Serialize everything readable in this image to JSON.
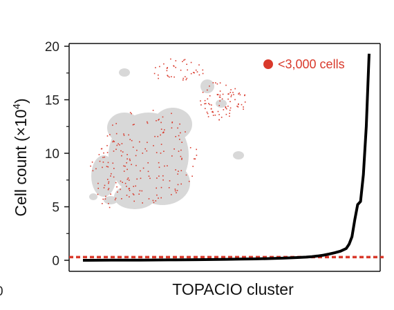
{
  "chart_data": {
    "type": "line",
    "title": "",
    "xlabel": "TOPACIO cluster",
    "ylabel": "Cell count (×10⁴)",
    "ylabel_base": "Cell count (×10",
    "ylabel_exp": "4",
    "ylabel_close": ")",
    "ylim": [
      0,
      20
    ],
    "yticks": [
      0,
      5,
      10,
      15,
      20
    ],
    "ytick_labels": [
      "0",
      "5",
      "10",
      "15",
      "20"
    ],
    "grid": false,
    "legend": {
      "placement": "top-right",
      "label": "<3,000 cells",
      "color": "#d9392b"
    },
    "threshold": {
      "value": 0.3,
      "color": "#d9392b",
      "style": "dashed"
    },
    "series": [
      {
        "color": "#000000",
        "x": [
          0,
          10,
          20,
          30,
          40,
          45,
          50,
          55,
          60,
          65,
          70,
          75,
          78,
          80,
          82,
          84,
          86,
          88,
          90,
          92,
          93,
          94,
          95,
          96,
          97,
          98,
          99,
          100
        ],
        "values": [
          0.0,
          0.01,
          0.02,
          0.04,
          0.06,
          0.07,
          0.09,
          0.11,
          0.13,
          0.16,
          0.2,
          0.26,
          0.3,
          0.34,
          0.4,
          0.48,
          0.58,
          0.7,
          0.85,
          1.1,
          1.5,
          2.2,
          3.8,
          5.2,
          5.5,
          8.0,
          12.5,
          19.3
        ]
      }
    ],
    "inset_fragment": "0",
    "colors": {
      "axis": "#111111",
      "curve": "#000000",
      "threshold": "#d9392b",
      "map_cells": "#d9392b",
      "map_background": "#d8d8d8"
    }
  }
}
